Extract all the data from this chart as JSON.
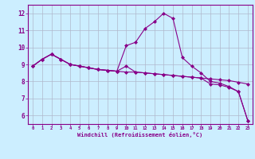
{
  "xlabel": "Windchill (Refroidissement éolien,°C)",
  "background_color": "#cceeff",
  "grid_color": "#b0b8cc",
  "line_color": "#880088",
  "hours": [
    0,
    1,
    2,
    3,
    4,
    5,
    6,
    7,
    8,
    9,
    10,
    11,
    12,
    13,
    14,
    15,
    16,
    17,
    18,
    19,
    20,
    21,
    22,
    23
  ],
  "line1": [
    8.9,
    9.3,
    9.6,
    9.3,
    9.0,
    8.9,
    8.8,
    8.7,
    8.65,
    8.6,
    8.55,
    8.55,
    8.5,
    8.45,
    8.4,
    8.35,
    8.3,
    8.25,
    8.2,
    8.15,
    8.1,
    8.05,
    7.95,
    7.85
  ],
  "line2": [
    8.9,
    9.3,
    9.6,
    9.3,
    9.0,
    8.9,
    8.8,
    8.7,
    8.65,
    8.6,
    10.1,
    10.3,
    11.1,
    11.5,
    12.0,
    11.7,
    9.4,
    8.9,
    8.5,
    8.0,
    7.9,
    7.7,
    7.4,
    5.7
  ],
  "line3": [
    8.9,
    9.3,
    9.6,
    9.3,
    9.0,
    8.9,
    8.8,
    8.7,
    8.65,
    8.6,
    8.9,
    8.55,
    8.5,
    8.45,
    8.4,
    8.35,
    8.3,
    8.25,
    8.2,
    7.85,
    7.8,
    7.65,
    7.4,
    5.7
  ],
  "ylim": [
    5.5,
    12.5
  ],
  "yticks": [
    6,
    7,
    8,
    9,
    10,
    11,
    12
  ],
  "xlim": [
    -0.5,
    23.5
  ],
  "marker": "D",
  "markersize": 2.0,
  "linewidth": 0.8
}
